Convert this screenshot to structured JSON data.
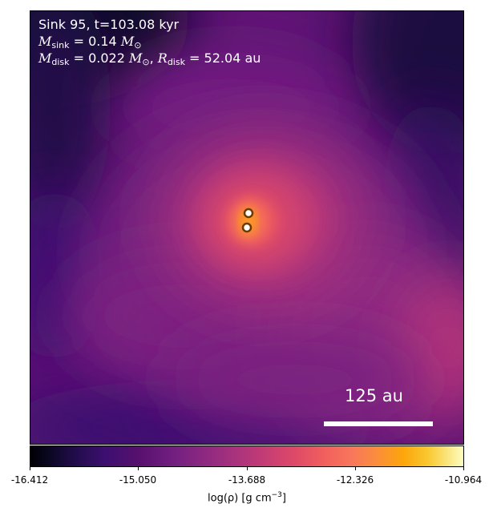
{
  "annotation": {
    "line1": "Sink 95, t=103.08 kyr",
    "m_sink_label": "M",
    "m_sink_sub": "sink",
    "m_sink_value": " = 0.14 ",
    "m_sink_unit": "M",
    "m_sink_unit_sub": "⊙",
    "m_disk_label": "M",
    "m_disk_sub": "disk",
    "m_disk_value": " = 0.022 ",
    "m_disk_unit": "M",
    "m_disk_unit_sub": "⊙",
    "separator": ", ",
    "r_disk_label": "R",
    "r_disk_sub": "disk",
    "r_disk_value": " = 52.04 au"
  },
  "scale_bar": {
    "label": "125 au"
  },
  "colorbar": {
    "ticks": [
      "-16.412",
      "-15.050",
      "-13.688",
      "-12.326",
      "-10.964"
    ],
    "label": "log(ρ) [g cm",
    "label_exp": "−3",
    "label_end": "]",
    "colormap": "inferno"
  }
}
